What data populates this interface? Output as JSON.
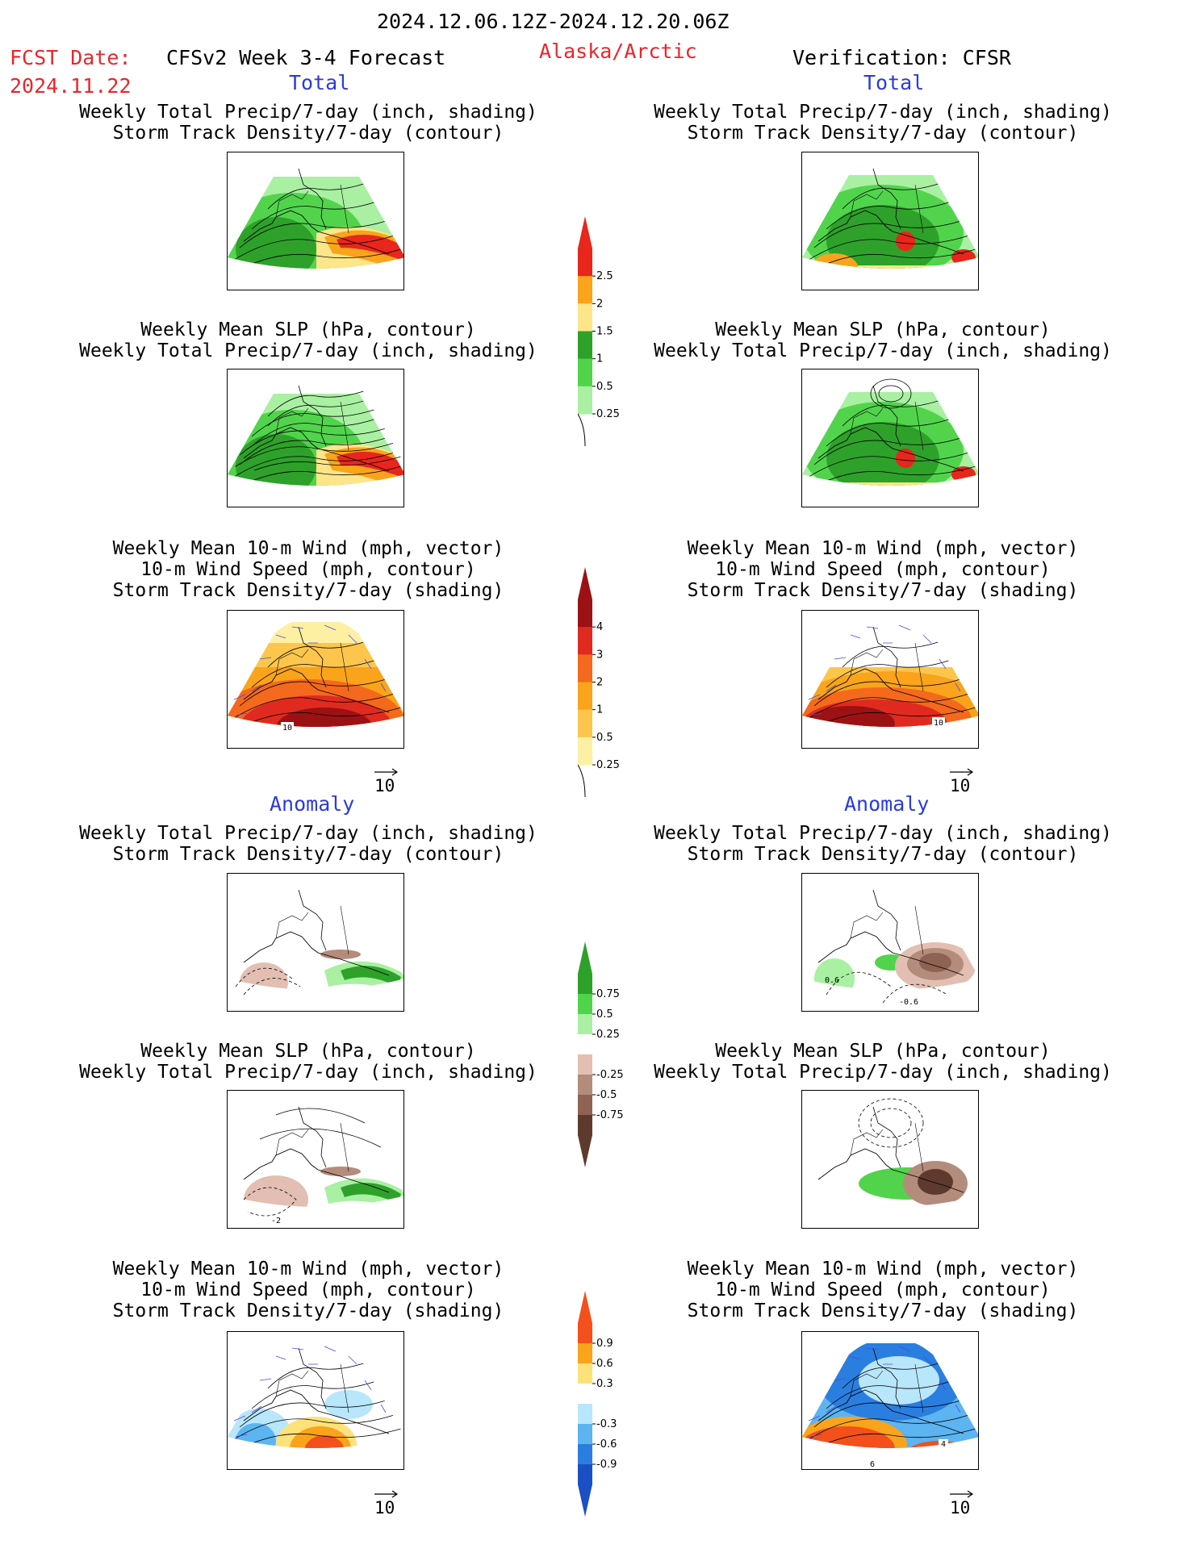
{
  "header": {
    "period": "2024.12.06.12Z-2024.12.20.06Z",
    "fcst_label": "FCST Date:",
    "fcst_date": "2024.11.22",
    "model": "CFSv2 Week 3-4 Forecast",
    "region": "Alaska/Arctic",
    "verification": "Verification: CFSR"
  },
  "sections": {
    "total": "Total",
    "anomaly": "Anomaly"
  },
  "titles": {
    "precip_track": [
      "Weekly Total Precip/7-day (inch, shading)",
      "Storm Track Density/7-day (contour)"
    ],
    "slp_precip": [
      "Weekly Mean SLP (hPa, contour)",
      "Weekly Total Precip/7-day (inch, shading)"
    ],
    "wind_track": [
      "Weekly Mean 10-m Wind (mph, vector)",
      "10-m Wind Speed (mph, contour)",
      "Storm Track Density/7-day (shading)"
    ]
  },
  "colorbars": {
    "precip_total": {
      "labels": [
        "2.5",
        "2",
        "1.5",
        "1",
        "0.5",
        "0.25"
      ],
      "colors": [
        "#e8261c",
        "#f9a41b",
        "#fde58a",
        "#2ea12a",
        "#51d44c",
        "#a9f0a2"
      ]
    },
    "track_total": {
      "labels": [
        "4",
        "3",
        "2",
        "1",
        "0.5",
        "0.25"
      ],
      "colors": [
        "#9c1214",
        "#e02a20",
        "#f4691c",
        "#f9a41b",
        "#fcc64d",
        "#fdf0a3"
      ]
    },
    "precip_anom": {
      "labels": [
        "0.75",
        "0.5",
        "0.25",
        "-0.25",
        "-0.5",
        "-0.75"
      ],
      "colors": [
        "#2ea12a",
        "#51d44c",
        "#a9f0a2",
        "#ffffff",
        "#e2bfb2",
        "#b48c7c",
        "#8e6353",
        "#5e3a2e"
      ]
    },
    "track_anom": {
      "labels": [
        "0.9",
        "0.6",
        "0.3",
        "-0.3",
        "-0.6",
        "-0.9"
      ],
      "colors": [
        "#f4501c",
        "#f9a41b",
        "#fde27a",
        "#ffffff",
        "#b8e6fa",
        "#5cb4f0",
        "#2a7ee0",
        "#1b4fc4"
      ]
    }
  },
  "panel_labels": {
    "left_wind_total": "10",
    "right_wind_total": "10",
    "left_slp_anom": "-2",
    "right_precip_anom_a": "0.6",
    "right_precip_anom_b": "-0.6",
    "right_wind_anom_a": "6",
    "right_wind_anom_b": "4"
  },
  "vector_ref": "10"
}
